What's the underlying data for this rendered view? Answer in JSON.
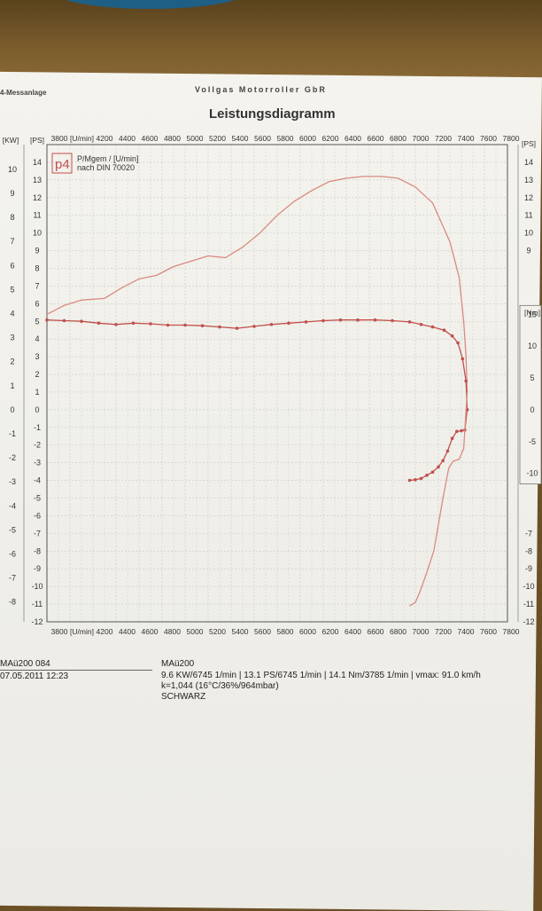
{
  "header": {
    "station": "4-Messanlage",
    "company": "Vollgas Motorroller GbR",
    "title": "Leistungsdiagramm"
  },
  "legend": {
    "logo": "p4",
    "line1": "P/Mgem / [U/min]",
    "line2": "nach DIN 70020"
  },
  "chart_data": {
    "type": "line",
    "title": "Leistungsdiagramm",
    "xlabel": "[U/min]",
    "x_ticks_top": [
      "3800",
      "[U/min]",
      "4200",
      "4400",
      "4600",
      "4800",
      "5000",
      "5200",
      "5400",
      "5600",
      "5800",
      "6000",
      "6200",
      "6400",
      "6600",
      "6800",
      "7000",
      "7200",
      "7400",
      "7600",
      "7800"
    ],
    "x_ticks_bottom": [
      "3800",
      "[U/min]",
      "4200",
      "4400",
      "4600",
      "4800",
      "5000",
      "5200",
      "5400",
      "5600",
      "5800",
      "6000",
      "6200",
      "6400",
      "6600",
      "6800",
      "7000",
      "7200",
      "7400",
      "7600",
      "7800"
    ],
    "xlim": [
      3800,
      7800
    ],
    "left_axis_kw": {
      "unit_label": "[KW]",
      "ticks": [
        10,
        9,
        8,
        7,
        6,
        5,
        4,
        3,
        2,
        1,
        0,
        -1,
        -2,
        -3,
        -4,
        -5,
        -6,
        -7,
        -8
      ],
      "range": [
        -8.5,
        10.5
      ]
    },
    "left_axis_ps": {
      "unit_label": "[PS]",
      "ticks": [
        14,
        13,
        12,
        11,
        10,
        9,
        8,
        7,
        6,
        5,
        4,
        3,
        2,
        1,
        0,
        -1,
        -2,
        -3,
        -4,
        -5,
        -6,
        -7,
        -8,
        -9,
        -10,
        -11,
        -12
      ],
      "range": [
        -12,
        15
      ]
    },
    "right_axis_ps": {
      "unit_label": "[PS]",
      "ticks": [
        14,
        13,
        12,
        11,
        10,
        9
      ],
      "lower_ticks": [
        -7,
        -8,
        -9,
        -10,
        -11,
        -12
      ]
    },
    "right_axis_nm": {
      "unit_label": "[Nm]",
      "ticks": [
        15,
        10,
        5,
        0,
        -5,
        -10
      ]
    },
    "grid": true,
    "series": [
      {
        "color": "#d98a82",
        "x": [
          3800,
          3950,
          4100,
          4300,
          4450,
          4600,
          4750,
          4900,
          5050,
          5200,
          5350,
          5500,
          5650,
          5800,
          5950,
          6100,
          6250,
          6400,
          6550,
          6700,
          6850,
          7000,
          7150,
          7300,
          7380,
          7420,
          7440,
          7450
        ],
        "ps": [
          5.4,
          5.9,
          6.2,
          6.3,
          6.9,
          7.4,
          7.6,
          8.1,
          8.4,
          8.7,
          8.6,
          9.2,
          10.0,
          11.0,
          11.8,
          12.4,
          12.9,
          13.1,
          13.2,
          13.2,
          13.1,
          12.6,
          11.7,
          9.5,
          7.5,
          5.0,
          3.0,
          1.0
        ]
      },
      {
        "color": "#c0504d",
        "x": [
          3800,
          3950,
          4100,
          4250,
          4400,
          4550,
          4700,
          4850,
          5000,
          5150,
          5300,
          5450,
          5600,
          5750,
          5900,
          6050,
          6200,
          6350,
          6500,
          6650,
          6800,
          6950,
          7050,
          7150,
          7250,
          7320,
          7370,
          7410,
          7440,
          7450
        ],
        "nm": [
          14.1,
          14.0,
          13.9,
          13.6,
          13.4,
          13.6,
          13.5,
          13.3,
          13.3,
          13.2,
          13.0,
          12.8,
          13.1,
          13.4,
          13.6,
          13.8,
          14.0,
          14.1,
          14.1,
          14.1,
          14.0,
          13.8,
          13.4,
          13.0,
          12.5,
          11.6,
          10.5,
          8.0,
          4.5,
          0.0
        ]
      },
      {
        "color": "#c0504d",
        "x": [
          7450,
          7430,
          7400,
          7360,
          7320,
          7280,
          7240,
          7200,
          7150,
          7100,
          7050,
          7000,
          6950
        ],
        "nm": [
          0.0,
          -3.2,
          -3.3,
          -3.4,
          -4.5,
          -6.5,
          -8.0,
          -9.0,
          -9.8,
          -10.3,
          -10.8,
          -11.0,
          -11.1
        ]
      },
      {
        "color": "#d98a82",
        "x": [
          7450,
          7420,
          7380,
          7330,
          7290,
          7240,
          7200,
          7160,
          7100,
          7040,
          7000,
          6950
        ],
        "ps": [
          1.0,
          -2.2,
          -2.8,
          -2.9,
          -3.3,
          -5.0,
          -6.5,
          -8.0,
          -9.2,
          -10.3,
          -10.9,
          -11.1
        ]
      }
    ]
  },
  "footer": {
    "run_id": "MAü200 084",
    "datetime": "07.05.2011  12:23",
    "vehicle": "MAü200",
    "results": "9.6 KW/6745 1/min  |  13.1 PS/6745 1/min  |  14.1 Nm/3785 1/min  |  vmax: 91.0 km/h",
    "correction": "k=1,044 (16°C/36%/964mbar)",
    "color": "SCHWARZ"
  }
}
